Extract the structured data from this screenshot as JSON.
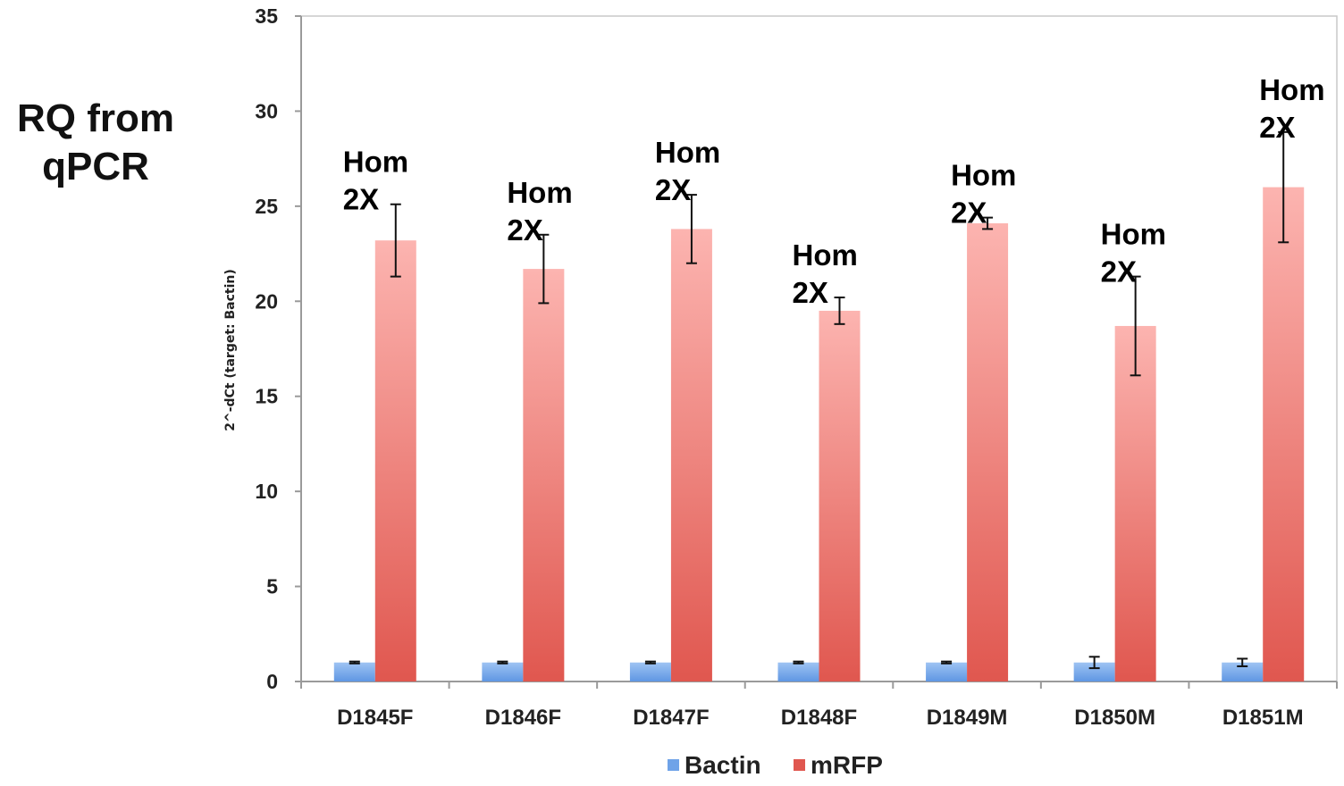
{
  "side_label": {
    "line1": "RQ from",
    "line2": "qPCR"
  },
  "chart_data": {
    "type": "bar",
    "title": "",
    "xlabel": "",
    "ylabel": "2^-dCt (target: Bactin)",
    "ylim": [
      0,
      35
    ],
    "yticks": [
      0,
      5,
      10,
      15,
      20,
      25,
      30,
      35
    ],
    "grid": false,
    "legend_position": "bottom",
    "categories": [
      "D1845F",
      "D1846F",
      "D1847F",
      "D1848F",
      "D1849M",
      "D1850M",
      "D1851M"
    ],
    "series": [
      {
        "name": "Bactin",
        "color": "#6fa3e8",
        "values": [
          1,
          1,
          1,
          1,
          1,
          1,
          1
        ],
        "errors": [
          0.05,
          0.05,
          0.05,
          0.05,
          0.05,
          0.3,
          0.2
        ]
      },
      {
        "name": "mRFP",
        "color": "#e0574f",
        "color_light": "#fcb4b0",
        "values": [
          23.2,
          21.7,
          23.8,
          19.5,
          24.1,
          18.7,
          26.0
        ],
        "errors": [
          1.9,
          1.8,
          1.8,
          0.7,
          0.3,
          2.6,
          2.9
        ]
      }
    ],
    "annotations": [
      {
        "category": "D1845F",
        "line1": "Hom",
        "line2": "2X"
      },
      {
        "category": "D1846F",
        "line1": "Hom",
        "line2": "2X"
      },
      {
        "category": "D1847F",
        "line1": "Hom",
        "line2": "2X"
      },
      {
        "category": "D1848F",
        "line1": "Hom",
        "line2": "2X"
      },
      {
        "category": "D1849M",
        "line1": "Hom",
        "line2": "2X"
      },
      {
        "category": "D1850M",
        "line1": "Hom",
        "line2": "2X"
      },
      {
        "category": "D1851M",
        "line1": "Hom",
        "line2": "2X"
      }
    ]
  }
}
